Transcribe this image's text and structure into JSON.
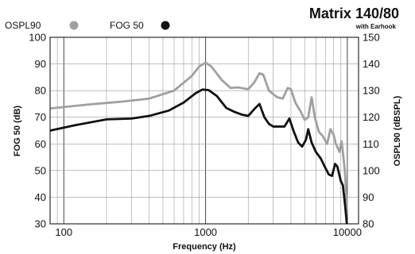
{
  "chart_data": {
    "type": "line",
    "title": "Matrix 140/80",
    "subtitle": "with Earhook",
    "xlabel": "Frequency (Hz)",
    "ylabel_left": "FOG 50 (dB)",
    "ylabel_right": "OSPL90 (dBSPL)",
    "x_scale": "log",
    "xlim": [
      80,
      12000
    ],
    "ylim_left": [
      30,
      100
    ],
    "ylim_right": [
      80,
      150
    ],
    "x_ticks": [
      100,
      1000,
      10000
    ],
    "x_tick_labels": [
      "100",
      "1000",
      "10000"
    ],
    "y_ticks_left": [
      30,
      40,
      50,
      60,
      70,
      80,
      90,
      100
    ],
    "y_ticks_right": [
      80,
      90,
      100,
      110,
      120,
      130,
      140,
      150
    ],
    "grid": true,
    "legend_position": "top-left",
    "series": [
      {
        "name": "OSPL90",
        "axis": "right",
        "color": "#a0a0a0",
        "marker": "filled-circle",
        "points": [
          [
            80,
            123.3
          ],
          [
            150,
            124.8
          ],
          [
            250,
            125.8
          ],
          [
            400,
            127
          ],
          [
            600,
            130
          ],
          [
            800,
            135.5
          ],
          [
            900,
            139
          ],
          [
            1000,
            140.5
          ],
          [
            1100,
            139
          ],
          [
            1300,
            134
          ],
          [
            1500,
            131
          ],
          [
            1700,
            131.2
          ],
          [
            2000,
            130.5
          ],
          [
            2200,
            133
          ],
          [
            2400,
            136.5
          ],
          [
            2550,
            136
          ],
          [
            2800,
            130
          ],
          [
            3200,
            127.5
          ],
          [
            3500,
            127
          ],
          [
            3800,
            131
          ],
          [
            4000,
            130.5
          ],
          [
            4300,
            125.5
          ],
          [
            4700,
            122
          ],
          [
            5000,
            119
          ],
          [
            5300,
            120
          ],
          [
            5600,
            127.5
          ],
          [
            5900,
            120
          ],
          [
            6300,
            114.5
          ],
          [
            6700,
            113
          ],
          [
            7200,
            110
          ],
          [
            7600,
            115.5
          ],
          [
            8000,
            113.5
          ],
          [
            8300,
            110
          ],
          [
            8800,
            107
          ],
          [
            9100,
            111
          ],
          [
            9300,
            107
          ],
          [
            9600,
            100
          ],
          [
            9800,
            92
          ],
          [
            10000,
            82
          ]
        ]
      },
      {
        "name": "FOG 50",
        "axis": "left",
        "color": "#111111",
        "marker": "filled-circle",
        "points": [
          [
            80,
            65
          ],
          [
            120,
            67
          ],
          [
            200,
            69.2
          ],
          [
            300,
            69.5
          ],
          [
            400,
            70.5
          ],
          [
            550,
            72.5
          ],
          [
            700,
            75.5
          ],
          [
            850,
            79
          ],
          [
            950,
            80.4
          ],
          [
            1050,
            80.2
          ],
          [
            1200,
            78
          ],
          [
            1400,
            73.5
          ],
          [
            1600,
            72
          ],
          [
            1800,
            71
          ],
          [
            2000,
            70.5
          ],
          [
            2200,
            73
          ],
          [
            2400,
            75
          ],
          [
            2600,
            70
          ],
          [
            2800,
            67.5
          ],
          [
            3000,
            66.5
          ],
          [
            3300,
            66.5
          ],
          [
            3600,
            66.5
          ],
          [
            3900,
            69.5
          ],
          [
            4200,
            64.5
          ],
          [
            4500,
            60.5
          ],
          [
            4800,
            59
          ],
          [
            5100,
            61.5
          ],
          [
            5300,
            65.5
          ],
          [
            5600,
            60.5
          ],
          [
            6000,
            57
          ],
          [
            6500,
            54.5
          ],
          [
            7000,
            51
          ],
          [
            7400,
            48.5
          ],
          [
            7800,
            48
          ],
          [
            8200,
            52.5
          ],
          [
            8500,
            51.5
          ],
          [
            9000,
            46
          ],
          [
            9300,
            44.5
          ],
          [
            9600,
            38
          ],
          [
            9800,
            33
          ],
          [
            10000,
            28
          ]
        ]
      }
    ]
  }
}
